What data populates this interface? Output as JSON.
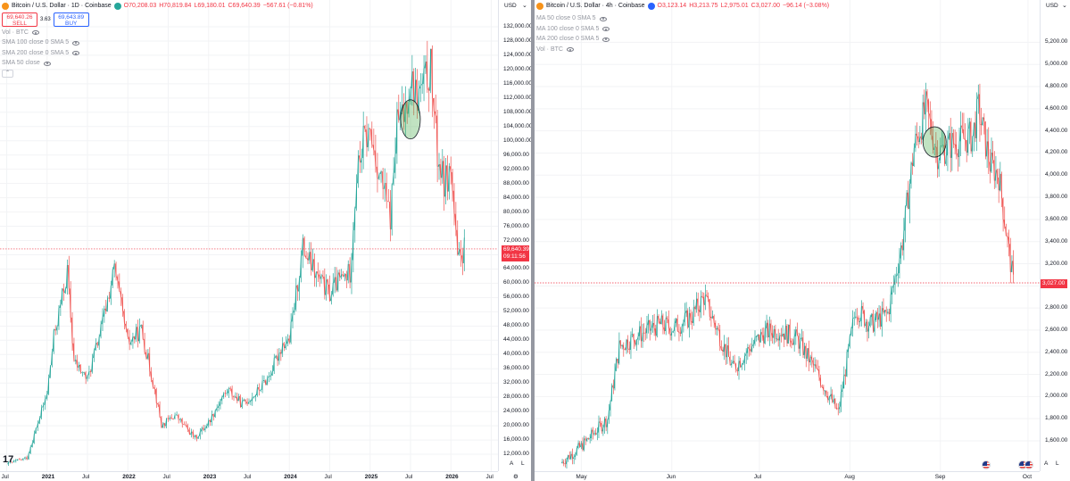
{
  "left": {
    "symbol_title": "Bitcoin / U.S. Dollar · 1D · Coinbase",
    "ohlc": {
      "o": "O70,208.03",
      "h": "H70,819.84",
      "l": "L69,180.01",
      "c": "C69,640.39",
      "chg": "−567.61 (−0.81%)"
    },
    "sell_price": "69,640.26",
    "sell_label": "SELL",
    "spread": "3.63",
    "buy_price": "69,643.89",
    "buy_label": "BUY",
    "indicators": [
      "Vol · BTC",
      "SMA 100 close 0 SMA 5",
      "SMA 200 close 0 SMA 5",
      "SMA 50 close"
    ],
    "currency": "USD",
    "last_price": "69,640.39",
    "countdown": "09:11:56",
    "time_labels": [
      "Jul",
      "2021",
      "Jul",
      "2022",
      "Jul",
      "2023",
      "Jul",
      "2024",
      "Jul",
      "2025",
      "Jul",
      "2026",
      "Jul"
    ],
    "corner_a": "A",
    "corner_l": "L",
    "watermark": "17"
  },
  "right": {
    "symbol_title": "Bitcoin / U.S. Dollar · 4h · Coinbase",
    "ohlc": {
      "o": "O3,123.14",
      "h": "H3,213.75",
      "l": "L2,975.01",
      "c": "C3,027.00",
      "chg": "−96.14 (−3.08%)"
    },
    "indicators": [
      "MA 50 close 0 SMA 5",
      "MA 100 close 0 SMA 5",
      "MA 200 close 0 SMA 5",
      "Vol · BTC"
    ],
    "currency": "USD",
    "last_price": "3,027.00",
    "time_labels": [
      "May",
      "Jun",
      "Jul",
      "Aug",
      "Sep",
      "Oct"
    ],
    "corner_a": "A",
    "corner_l": "L"
  },
  "colors": {
    "up": "#26a69a",
    "down": "#ef5350",
    "last": "#f23645",
    "highlight": "#4caf50",
    "axis_text": "#131722",
    "muted": "#9598a1"
  },
  "chart_data": [
    {
      "type": "line",
      "title": "Bitcoin / U.S. Dollar · 1D · Coinbase",
      "xlabel": "",
      "ylabel": "USD",
      "y_ticks": [
        12000,
        16000,
        20000,
        24000,
        28000,
        32000,
        36000,
        40000,
        44000,
        48000,
        52000,
        56000,
        60000,
        64000,
        68000,
        72000,
        76000,
        80000,
        84000,
        88000,
        92000,
        96000,
        100000,
        104000,
        108000,
        112000,
        116000,
        120000,
        124000,
        128000,
        132000
      ],
      "ylim": [
        8000,
        135000
      ],
      "x": [
        "2020-07",
        "2020-10",
        "2021-01",
        "2021-02",
        "2021-04",
        "2021-05",
        "2021-07",
        "2021-09",
        "2021-11",
        "2022-01",
        "2022-03",
        "2022-05",
        "2022-06",
        "2022-08",
        "2022-11",
        "2023-01",
        "2023-03",
        "2023-04",
        "2023-06",
        "2023-08",
        "2023-10",
        "2023-12",
        "2024-01",
        "2024-03",
        "2024-05",
        "2024-07",
        "2024-08",
        "2024-10",
        "2024-11",
        "2024-12",
        "2025-01",
        "2025-04",
        "2025-05",
        "2025-06",
        "2025-07",
        "2025-08",
        "2025-10",
        "2025-11",
        "2025-12",
        "2026-01",
        "2026-02",
        "2026-03"
      ],
      "series": [
        {
          "values": [
            9200,
            11000,
            29000,
            45000,
            63000,
            38000,
            33000,
            47000,
            64000,
            43000,
            47000,
            30000,
            20000,
            23000,
            16500,
            21000,
            28000,
            30000,
            26000,
            29000,
            34000,
            43000,
            44000,
            70000,
            62000,
            57000,
            60000,
            63000,
            90000,
            100000,
            102000,
            78000,
            105000,
            107000,
            118000,
            112000,
            120000,
            96000,
            88000,
            92000,
            66000,
            69640
          ]
        }
      ],
      "highlight_ellipse": {
        "x": "2025-07",
        "y": 106000
      },
      "last_price": 69640.39
    },
    {
      "type": "line",
      "title": "Bitcoin / U.S. Dollar · 4h · Coinbase",
      "xlabel": "",
      "ylabel": "USD",
      "y_ticks": [
        1600,
        1800,
        2000,
        2200,
        2400,
        2600,
        2800,
        3000,
        3200,
        3400,
        3600,
        3800,
        4000,
        4200,
        4400,
        4600,
        4800,
        5000,
        5200
      ],
      "ylim": [
        1350,
        5300
      ],
      "x": [
        "2025-04-24",
        "2025-05-01",
        "2025-05-10",
        "2025-05-14",
        "2025-05-20",
        "2025-05-28",
        "2025-06-02",
        "2025-06-08",
        "2025-06-12",
        "2025-06-22",
        "2025-06-28",
        "2025-07-03",
        "2025-07-08",
        "2025-07-14",
        "2025-07-20",
        "2025-07-28",
        "2025-08-03",
        "2025-08-08",
        "2025-08-14",
        "2025-08-19",
        "2025-08-23",
        "2025-08-27",
        "2025-08-31",
        "2025-09-06",
        "2025-09-12",
        "2025-09-14",
        "2025-09-18",
        "2025-09-21",
        "2025-09-24",
        "2025-09-26"
      ],
      "series": [
        {
          "values": [
            1400,
            1550,
            1800,
            2450,
            2550,
            2650,
            2620,
            2730,
            2900,
            2250,
            2450,
            2580,
            2600,
            2520,
            2250,
            1850,
            2800,
            2650,
            2750,
            3400,
            4250,
            4600,
            4200,
            4300,
            4350,
            4600,
            4100,
            4000,
            3400,
            3027
          ]
        }
      ],
      "highlight_ellipse": {
        "x": "2025-08-30",
        "y": 4300
      },
      "last_price": 3027.0
    }
  ]
}
